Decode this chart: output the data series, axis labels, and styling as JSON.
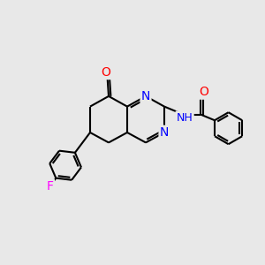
{
  "bg_color": "#e8e8e8",
  "bond_color": "#000000",
  "N_color": "#0000ff",
  "O_color": "#ff0000",
  "F_color": "#ff00ff",
  "NH_color": "#0000ff",
  "lw": 1.5,
  "fs": 10,
  "fig_size": [
    3.0,
    3.0
  ],
  "dpi": 100,
  "xlim": [
    0,
    10
  ],
  "ylim": [
    0,
    10
  ]
}
